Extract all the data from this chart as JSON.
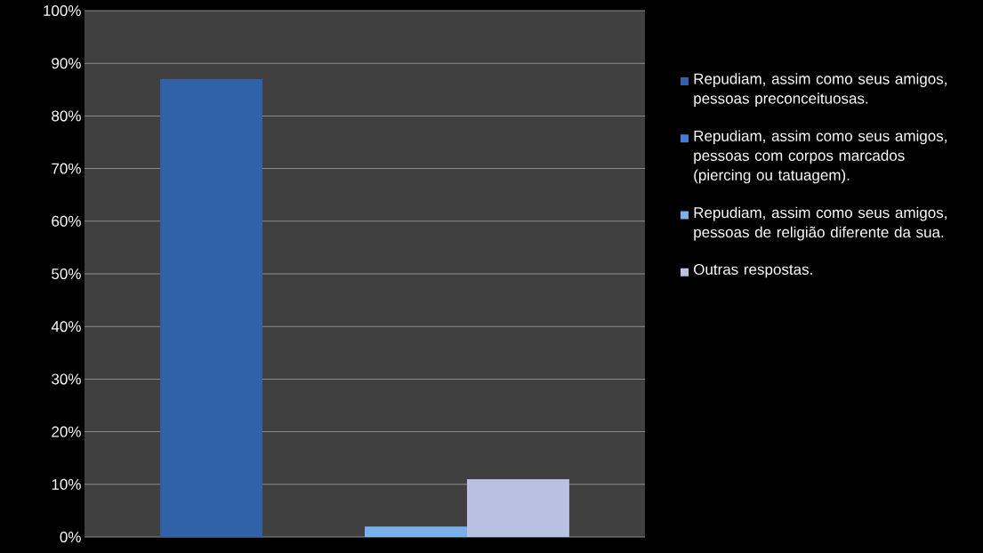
{
  "chart_data": {
    "type": "bar",
    "categories": [
      null
    ],
    "series": [
      {
        "name": "Repudiam, assim como seus amigos, pessoas preconceituosas.",
        "color": "#2f62a8",
        "values": [
          87
        ]
      },
      {
        "name": "Repudiam, assim como seus amigos, pessoas com corpos marcados (piercing ou tatuagem).",
        "color": "#3f7fd0",
        "values": [
          0
        ]
      },
      {
        "name": "Repudiam, assim como seus amigos, pessoas de religião diferente da sua.",
        "color": "#7ab0ec",
        "values": [
          2
        ]
      },
      {
        "name": "Outras respostas.",
        "color": "#b9c1e2",
        "values": [
          11
        ]
      }
    ],
    "ylim": [
      0,
      100
    ],
    "yticks": [
      {
        "value": 0,
        "label": "0%"
      },
      {
        "value": 10,
        "label": "10%"
      },
      {
        "value": 20,
        "label": "20%"
      },
      {
        "value": 30,
        "label": "30%"
      },
      {
        "value": 40,
        "label": "40%"
      },
      {
        "value": 50,
        "label": "50%"
      },
      {
        "value": 60,
        "label": "60%"
      },
      {
        "value": 70,
        "label": "70%"
      },
      {
        "value": 80,
        "label": "80%"
      },
      {
        "value": 90,
        "label": "90%"
      },
      {
        "value": 100,
        "label": "100%"
      }
    ],
    "grid": "y",
    "legend": "right"
  }
}
